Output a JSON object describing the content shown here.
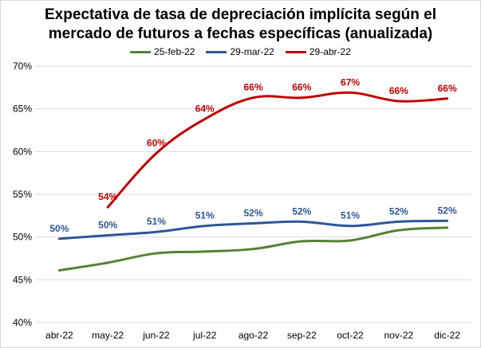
{
  "chart_data": {
    "type": "line",
    "title_lines": [
      "Expectativa de tasa de depreciación implícita según el",
      "mercado de futuros a fechas específicas (anualizada)"
    ],
    "categories": [
      "abr-22",
      "may-22",
      "jun-22",
      "jul-22",
      "ago-22",
      "sep-22",
      "oct-22",
      "nov-22",
      "dic-22"
    ],
    "ylim": [
      40,
      70
    ],
    "yticks": [
      40,
      45,
      50,
      55,
      60,
      65,
      70
    ],
    "ytick_labels": [
      "40%",
      "45%",
      "50%",
      "55%",
      "60%",
      "65%",
      "70%"
    ],
    "grid": "horizontal",
    "legend_position": "top",
    "series": [
      {
        "name": "25-feb-22",
        "color": "#548235",
        "values": [
          46.1,
          47.0,
          48.1,
          48.3,
          48.6,
          49.5,
          49.6,
          50.8,
          51.1
        ],
        "labels": [
          null,
          null,
          null,
          null,
          null,
          null,
          null,
          null,
          null
        ]
      },
      {
        "name": "29-mar-22",
        "color": "#2f5597",
        "values": [
          49.8,
          50.2,
          50.6,
          51.3,
          51.6,
          51.8,
          51.3,
          51.8,
          51.9
        ],
        "labels": [
          "50%",
          "50%",
          "51%",
          "51%",
          "52%",
          "52%",
          "51%",
          "52%",
          "52%"
        ]
      },
      {
        "name": "29-abr-22",
        "color": "#c00000",
        "values": [
          null,
          53.5,
          59.8,
          63.8,
          66.3,
          66.3,
          66.9,
          65.9,
          66.2
        ],
        "labels": [
          null,
          "54%",
          "60%",
          "64%",
          "66%",
          "66%",
          "67%",
          "66%",
          "66%"
        ]
      }
    ]
  }
}
